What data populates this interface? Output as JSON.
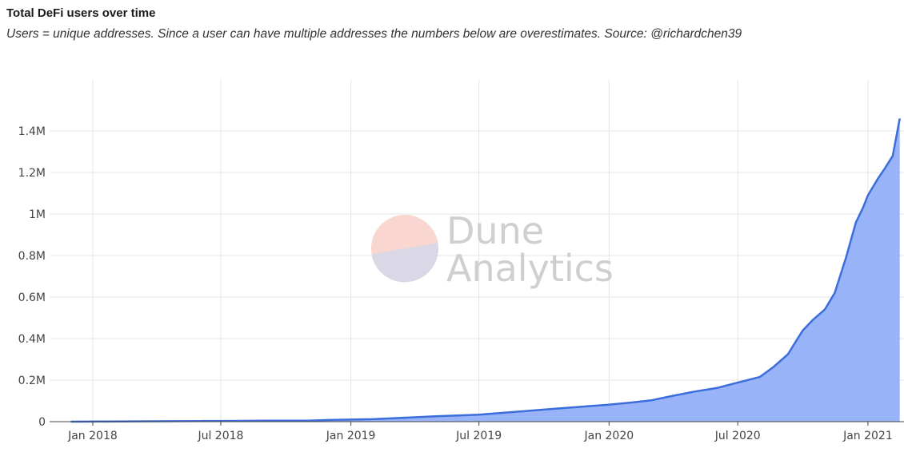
{
  "header": {
    "title": "Total DeFi users over time",
    "subtitle": "Users = unique addresses. Since a user can have multiple addresses the numbers below are overestimates. Source: @richardchen39"
  },
  "watermark": {
    "line1": "Dune",
    "line2": "Analytics"
  },
  "colors": {
    "line": "#3b6ddb",
    "fill": "#98b3f8",
    "grid": "#e6e6e6",
    "axis": "#444444",
    "wm_top": "#f9d6cf",
    "wm_bottom": "#dad8e6"
  },
  "chart_data": {
    "type": "area",
    "title": "Total DeFi users over time",
    "xlabel": "",
    "ylabel": "",
    "series": [
      {
        "x": [
          "2017-12-01",
          "2018-01-01",
          "2018-02-01",
          "2018-03-01",
          "2018-04-01",
          "2018-05-01",
          "2018-06-01",
          "2018-07-01",
          "2018-08-01",
          "2018-09-01",
          "2018-10-01",
          "2018-11-01",
          "2018-12-01",
          "2019-01-01",
          "2019-02-01",
          "2019-03-01",
          "2019-04-01",
          "2019-05-01",
          "2019-06-01",
          "2019-07-01",
          "2019-08-01",
          "2019-09-01",
          "2019-10-01",
          "2019-11-01",
          "2019-12-01",
          "2020-01-01",
          "2020-02-01",
          "2020-03-01",
          "2020-04-01",
          "2020-05-01",
          "2020-06-01",
          "2020-07-01",
          "2020-08-01",
          "2020-08-20",
          "2020-09-10",
          "2020-09-20",
          "2020-10-01",
          "2020-10-15",
          "2020-11-01",
          "2020-11-15",
          "2020-12-01",
          "2020-12-15",
          "2020-12-25",
          "2021-01-01",
          "2021-01-15",
          "2021-01-25",
          "2021-02-05",
          "2021-02-15"
        ],
        "values": [
          0,
          500,
          1000,
          1500,
          2000,
          2500,
          3000,
          3500,
          4000,
          4500,
          5000,
          5000,
          8000,
          10000,
          12000,
          16000,
          21000,
          26000,
          30000,
          34000,
          42000,
          50000,
          58000,
          66000,
          74000,
          82000,
          92000,
          103000,
          125000,
          145000,
          162000,
          188000,
          215000,
          262000,
          325000,
          380000,
          440000,
          490000,
          540000,
          620000,
          790000,
          960000,
          1030000,
          1090000,
          1170000,
          1220000,
          1280000,
          1460000
        ]
      }
    ],
    "ylim": [
      0,
      1500000
    ],
    "xlim": [
      "2017-11-01",
      "2021-02-21"
    ],
    "x_ticks": [
      {
        "date": "2018-01-01",
        "label": "Jan 2018"
      },
      {
        "date": "2018-07-01",
        "label": "Jul 2018"
      },
      {
        "date": "2019-01-01",
        "label": "Jan 2019"
      },
      {
        "date": "2019-07-01",
        "label": "Jul 2019"
      },
      {
        "date": "2020-01-01",
        "label": "Jan 2020"
      },
      {
        "date": "2020-07-01",
        "label": "Jul 2020"
      },
      {
        "date": "2021-01-01",
        "label": "Jan 2021"
      }
    ],
    "y_ticks": [
      {
        "value": 0,
        "label": "0"
      },
      {
        "value": 200000,
        "label": "0.2M"
      },
      {
        "value": 400000,
        "label": "0.4M"
      },
      {
        "value": 600000,
        "label": "0.6M"
      },
      {
        "value": 800000,
        "label": "0.8M"
      },
      {
        "value": 1000000,
        "label": "1M"
      },
      {
        "value": 1200000,
        "label": "1.2M"
      },
      {
        "value": 1400000,
        "label": "1.4M"
      }
    ],
    "grid": true,
    "legend": "none"
  }
}
